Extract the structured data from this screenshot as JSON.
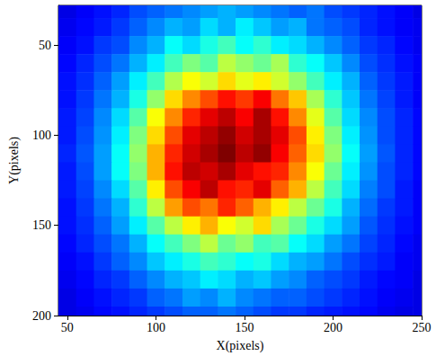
{
  "chart_data": {
    "type": "heatmap",
    "x_label": "X(pixels)",
    "y_label": "Y(pixels)",
    "xlim": [
      45,
      250
    ],
    "xticks": [
      50,
      100,
      150,
      200,
      250
    ],
    "ylim": [
      200,
      28
    ],
    "yticks": [
      50,
      100,
      150,
      200
    ],
    "cell_range": [
      0,
      100
    ],
    "cell_x": [
      50,
      60,
      70,
      80,
      90,
      100,
      110,
      120,
      130,
      140,
      150,
      160,
      170,
      180,
      190,
      200,
      210,
      220,
      230,
      240,
      250
    ],
    "cell_y": [
      30,
      40,
      50,
      60,
      70,
      80,
      90,
      100,
      110,
      120,
      130,
      140,
      150,
      160,
      170,
      180,
      190,
      200
    ],
    "cells": [
      [
        10,
        12,
        14,
        16,
        20,
        22,
        24,
        26,
        28,
        30,
        28,
        26,
        24,
        22,
        24,
        20,
        18,
        16,
        14,
        12,
        10
      ],
      [
        11,
        13,
        15,
        18,
        22,
        26,
        30,
        28,
        34,
        30,
        36,
        32,
        28,
        30,
        24,
        22,
        20,
        16,
        14,
        12,
        11
      ],
      [
        12,
        14,
        18,
        20,
        26,
        30,
        38,
        34,
        40,
        44,
        38,
        42,
        36,
        34,
        30,
        26,
        22,
        18,
        16,
        13,
        11
      ],
      [
        13,
        16,
        20,
        24,
        30,
        36,
        44,
        50,
        46,
        56,
        52,
        48,
        54,
        42,
        38,
        32,
        26,
        20,
        17,
        14,
        12
      ],
      [
        14,
        17,
        22,
        28,
        36,
        44,
        55,
        62,
        58,
        66,
        60,
        64,
        58,
        52,
        44,
        36,
        30,
        22,
        18,
        15,
        12
      ],
      [
        14,
        18,
        24,
        30,
        40,
        52,
        66,
        74,
        80,
        86,
        82,
        88,
        76,
        68,
        54,
        42,
        32,
        24,
        19,
        15,
        12
      ],
      [
        15,
        19,
        26,
        34,
        46,
        62,
        74,
        84,
        90,
        94,
        88,
        96,
        86,
        74,
        60,
        46,
        34,
        26,
        20,
        16,
        13
      ],
      [
        15,
        20,
        27,
        36,
        50,
        66,
        80,
        90,
        94,
        98,
        92,
        96,
        90,
        80,
        64,
        50,
        36,
        27,
        20,
        16,
        13
      ],
      [
        16,
        21,
        28,
        38,
        52,
        70,
        84,
        92,
        96,
        100,
        94,
        98,
        88,
        78,
        66,
        52,
        38,
        28,
        21,
        16,
        13
      ],
      [
        15,
        20,
        28,
        38,
        50,
        70,
        86,
        94,
        92,
        96,
        90,
        86,
        84,
        74,
        62,
        48,
        36,
        27,
        20,
        16,
        13
      ],
      [
        15,
        19,
        26,
        34,
        46,
        64,
        80,
        88,
        94,
        86,
        84,
        90,
        78,
        70,
        56,
        44,
        34,
        25,
        20,
        15,
        12
      ],
      [
        14,
        18,
        24,
        30,
        42,
        56,
        72,
        80,
        76,
        84,
        78,
        70,
        64,
        56,
        48,
        40,
        30,
        23,
        18,
        15,
        12
      ],
      [
        14,
        17,
        22,
        28,
        36,
        46,
        56,
        64,
        70,
        62,
        58,
        66,
        54,
        48,
        40,
        34,
        28,
        21,
        17,
        14,
        12
      ],
      [
        13,
        16,
        20,
        24,
        30,
        38,
        44,
        50,
        56,
        48,
        52,
        44,
        46,
        38,
        34,
        28,
        24,
        19,
        16,
        13,
        11
      ],
      [
        12,
        14,
        18,
        22,
        26,
        32,
        36,
        40,
        44,
        42,
        38,
        40,
        34,
        30,
        28,
        24,
        20,
        17,
        15,
        12,
        11
      ],
      [
        11,
        13,
        16,
        18,
        22,
        26,
        30,
        32,
        36,
        34,
        30,
        32,
        28,
        26,
        22,
        20,
        18,
        15,
        13,
        12,
        10
      ],
      [
        10,
        12,
        14,
        16,
        18,
        22,
        24,
        28,
        26,
        30,
        26,
        24,
        22,
        22,
        20,
        18,
        16,
        14,
        12,
        11,
        10
      ],
      [
        10,
        11,
        13,
        14,
        16,
        18,
        20,
        22,
        22,
        24,
        22,
        20,
        18,
        18,
        16,
        15,
        14,
        13,
        11,
        10,
        10
      ]
    ]
  }
}
